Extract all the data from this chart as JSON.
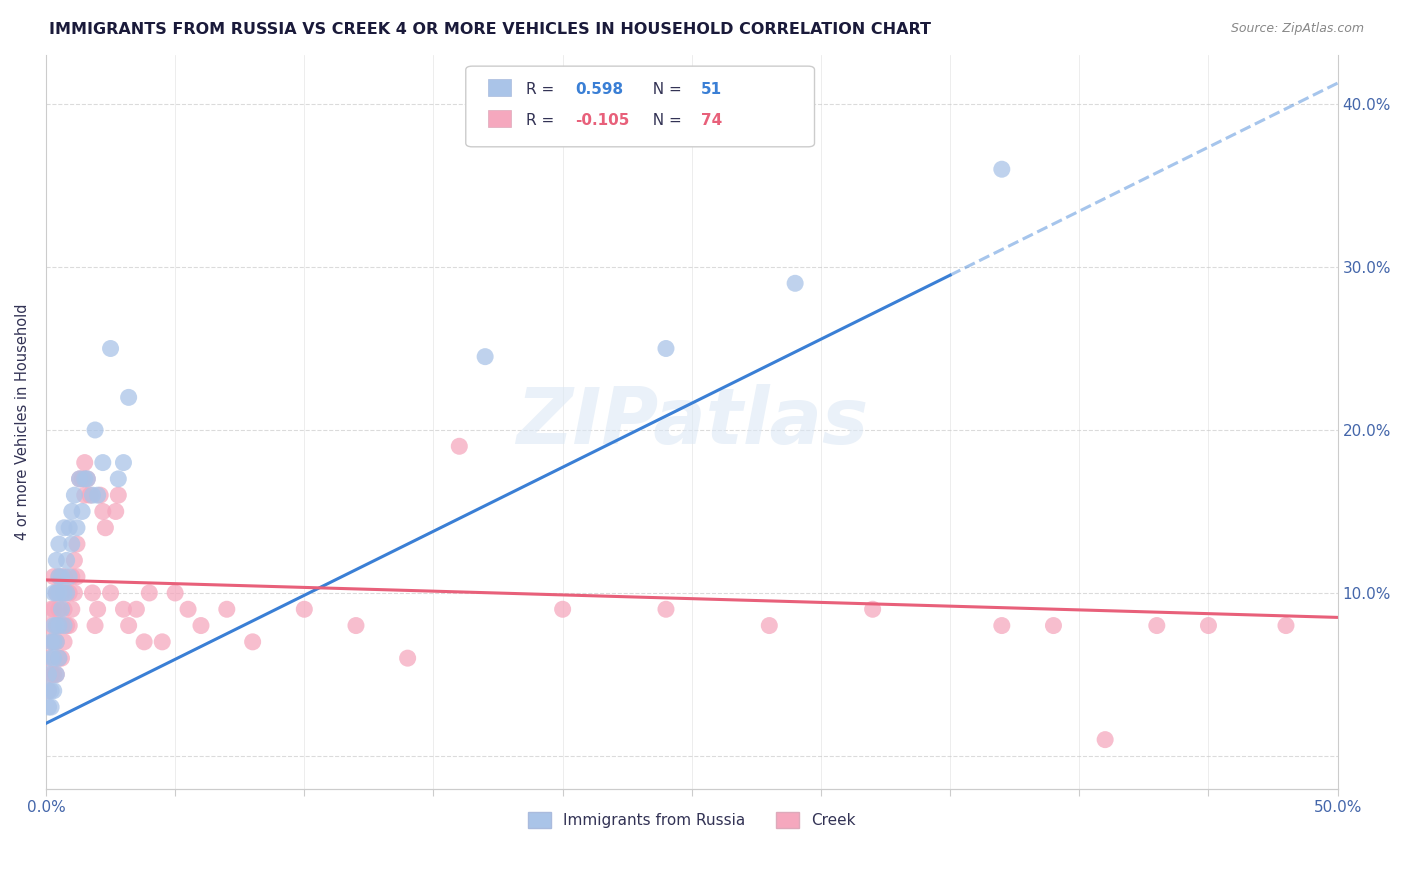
{
  "title": "IMMIGRANTS FROM RUSSIA VS CREEK 4 OR MORE VEHICLES IN HOUSEHOLD CORRELATION CHART",
  "source": "Source: ZipAtlas.com",
  "ylabel": "4 or more Vehicles in Household",
  "xlim": [
    0.0,
    0.5
  ],
  "ylim": [
    -0.02,
    0.43
  ],
  "legend_label1": "Immigrants from Russia",
  "legend_label2": "Creek",
  "R1": 0.598,
  "N1": 51,
  "R2": -0.105,
  "N2": 74,
  "color1": "#aac4e8",
  "color2": "#f5a8be",
  "line_color1": "#3a7fd5",
  "line_color2": "#e8607a",
  "watermark": "ZIPatlas",
  "russia_x": [
    0.001,
    0.001,
    0.001,
    0.002,
    0.002,
    0.002,
    0.002,
    0.003,
    0.003,
    0.003,
    0.003,
    0.003,
    0.004,
    0.004,
    0.004,
    0.004,
    0.004,
    0.005,
    0.005,
    0.005,
    0.005,
    0.005,
    0.006,
    0.006,
    0.007,
    0.007,
    0.007,
    0.008,
    0.008,
    0.009,
    0.009,
    0.01,
    0.01,
    0.011,
    0.012,
    0.013,
    0.014,
    0.015,
    0.016,
    0.018,
    0.019,
    0.02,
    0.022,
    0.025,
    0.028,
    0.03,
    0.032,
    0.17,
    0.24,
    0.29,
    0.37
  ],
  "russia_y": [
    0.03,
    0.04,
    0.05,
    0.03,
    0.04,
    0.06,
    0.07,
    0.04,
    0.06,
    0.07,
    0.08,
    0.1,
    0.05,
    0.07,
    0.08,
    0.1,
    0.12,
    0.06,
    0.08,
    0.1,
    0.11,
    0.13,
    0.09,
    0.11,
    0.08,
    0.1,
    0.14,
    0.1,
    0.12,
    0.11,
    0.14,
    0.13,
    0.15,
    0.16,
    0.14,
    0.17,
    0.15,
    0.17,
    0.17,
    0.16,
    0.2,
    0.16,
    0.18,
    0.25,
    0.17,
    0.18,
    0.22,
    0.245,
    0.25,
    0.29,
    0.36
  ],
  "creek_x": [
    0.001,
    0.001,
    0.001,
    0.002,
    0.002,
    0.002,
    0.003,
    0.003,
    0.003,
    0.003,
    0.004,
    0.004,
    0.004,
    0.004,
    0.005,
    0.005,
    0.005,
    0.005,
    0.006,
    0.006,
    0.006,
    0.007,
    0.007,
    0.007,
    0.008,
    0.008,
    0.009,
    0.009,
    0.01,
    0.01,
    0.011,
    0.011,
    0.012,
    0.012,
    0.013,
    0.014,
    0.015,
    0.015,
    0.016,
    0.017,
    0.018,
    0.019,
    0.02,
    0.021,
    0.022,
    0.023,
    0.025,
    0.027,
    0.028,
    0.03,
    0.032,
    0.035,
    0.038,
    0.04,
    0.045,
    0.05,
    0.055,
    0.06,
    0.07,
    0.08,
    0.1,
    0.12,
    0.14,
    0.16,
    0.2,
    0.24,
    0.28,
    0.32,
    0.37,
    0.39,
    0.41,
    0.43,
    0.45,
    0.48
  ],
  "creek_y": [
    0.04,
    0.06,
    0.08,
    0.05,
    0.07,
    0.09,
    0.05,
    0.07,
    0.09,
    0.11,
    0.05,
    0.07,
    0.08,
    0.1,
    0.06,
    0.08,
    0.09,
    0.11,
    0.06,
    0.08,
    0.1,
    0.07,
    0.09,
    0.11,
    0.08,
    0.1,
    0.08,
    0.1,
    0.09,
    0.11,
    0.1,
    0.12,
    0.11,
    0.13,
    0.17,
    0.17,
    0.16,
    0.18,
    0.17,
    0.16,
    0.1,
    0.08,
    0.09,
    0.16,
    0.15,
    0.14,
    0.1,
    0.15,
    0.16,
    0.09,
    0.08,
    0.09,
    0.07,
    0.1,
    0.07,
    0.1,
    0.09,
    0.08,
    0.09,
    0.07,
    0.09,
    0.08,
    0.06,
    0.19,
    0.09,
    0.09,
    0.08,
    0.09,
    0.08,
    0.08,
    0.01,
    0.08,
    0.08,
    0.08
  ],
  "line1_x0": 0.0,
  "line1_y0": 0.02,
  "line1_x1": 0.35,
  "line1_y1": 0.295,
  "line2_x0": 0.0,
  "line2_y0": 0.108,
  "line2_x1": 0.5,
  "line2_y1": 0.085
}
